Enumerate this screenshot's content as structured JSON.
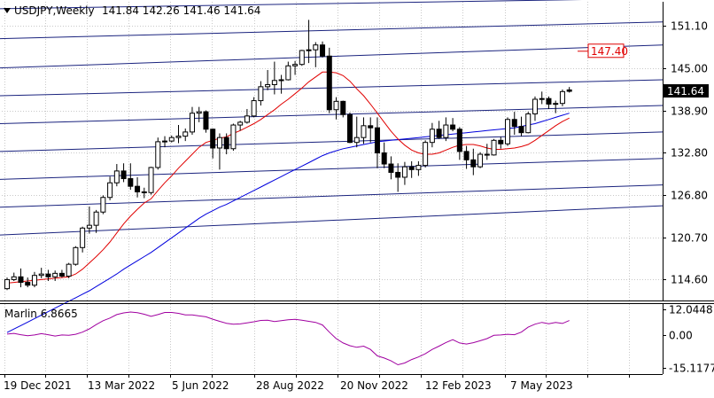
{
  "header": {
    "symbol_label": "USDJPY,Weekly",
    "ohlc_label": "141.84 142.26 141.46 141.64"
  },
  "colors": {
    "bull": "#000000",
    "bear": "#000000",
    "bull_fill": "#ffffff",
    "bear_fill": "#000000",
    "ma_fast": "#e00000",
    "ma_slow": "#0000dd",
    "channel": "#1a237e",
    "oscillator": "#a000a0",
    "target": "#e00000",
    "grid": "#c8c8c8"
  },
  "chart_data": [
    {
      "type": "candlestick",
      "symbol": "USDJPY",
      "timeframe": "Weekly",
      "ylim": [
        111.6,
        154.5
      ],
      "y_ticks": [
        "151.10",
        "145.00",
        "138.90",
        "132.80",
        "126.80",
        "120.70",
        "114.60"
      ],
      "x_ticks": [
        "19 Dec 2021",
        "13 Mar 2022",
        "5 Jun 2022",
        "28 Aug 2022",
        "20 Nov 2022",
        "12 Feb 2023",
        "7 May 2023"
      ],
      "current_price_label": "141.64",
      "target_label": "147.40",
      "target_value": 147.4,
      "ohlc": [
        [
          113.3,
          114.9,
          113.1,
          114.6
        ],
        [
          114.6,
          115.6,
          114.4,
          115.0
        ],
        [
          115.0,
          116.2,
          113.5,
          114.2
        ],
        [
          114.2,
          114.9,
          113.5,
          113.8
        ],
        [
          113.8,
          115.7,
          113.5,
          115.2
        ],
        [
          115.2,
          116.3,
          114.8,
          115.4
        ],
        [
          115.4,
          116.0,
          114.4,
          115.0
        ],
        [
          115.0,
          115.9,
          114.4,
          115.5
        ],
        [
          115.5,
          116.0,
          114.9,
          115.1
        ],
        [
          115.1,
          117.0,
          114.8,
          116.8
        ],
        [
          116.8,
          119.4,
          116.6,
          119.2
        ],
        [
          119.2,
          122.2,
          118.5,
          122.0
        ],
        [
          122.0,
          125.1,
          121.2,
          122.4
        ],
        [
          122.4,
          124.6,
          121.3,
          124.3
        ],
        [
          124.3,
          126.7,
          124.0,
          126.4
        ],
        [
          126.4,
          129.4,
          126.0,
          128.5
        ],
        [
          128.5,
          131.2,
          128.0,
          130.2
        ],
        [
          130.2,
          131.3,
          128.6,
          129.1
        ],
        [
          129.1,
          131.3,
          127.5,
          128.0
        ],
        [
          128.0,
          129.3,
          126.4,
          127.2
        ],
        [
          127.2,
          127.8,
          126.3,
          127.1
        ],
        [
          127.1,
          130.8,
          126.8,
          130.7
        ],
        [
          130.7,
          135.0,
          130.4,
          134.4
        ],
        [
          134.4,
          135.2,
          133.6,
          134.5
        ],
        [
          134.5,
          135.3,
          134.3,
          135.0
        ],
        [
          135.0,
          136.8,
          134.2,
          135.2
        ],
        [
          135.2,
          136.3,
          134.5,
          135.8
        ],
        [
          135.8,
          139.4,
          135.4,
          138.5
        ],
        [
          138.5,
          139.4,
          137.2,
          138.7
        ],
        [
          138.7,
          138.9,
          135.7,
          136.2
        ],
        [
          136.2,
          136.3,
          132.0,
          133.5
        ],
        [
          133.5,
          135.6,
          130.4,
          135.0
        ],
        [
          135.0,
          135.6,
          132.6,
          133.4
        ],
        [
          133.4,
          137.0,
          133.1,
          136.8
        ],
        [
          136.8,
          137.4,
          136.0,
          137.2
        ],
        [
          137.2,
          139.1,
          137.0,
          138.1
        ],
        [
          138.1,
          140.8,
          137.9,
          140.3
        ],
        [
          140.3,
          143.1,
          139.6,
          142.3
        ],
        [
          142.3,
          144.7,
          141.8,
          142.6
        ],
        [
          142.6,
          145.9,
          141.2,
          143.2
        ],
        [
          143.2,
          144.0,
          141.3,
          143.3
        ],
        [
          143.3,
          145.9,
          143.2,
          145.3
        ],
        [
          145.3,
          146.0,
          144.0,
          145.5
        ],
        [
          145.5,
          147.6,
          145.3,
          147.5
        ],
        [
          147.5,
          151.9,
          145.7,
          147.6
        ],
        [
          147.6,
          148.7,
          145.1,
          148.3
        ],
        [
          148.3,
          148.8,
          146.5,
          146.7
        ],
        [
          146.7,
          147.9,
          138.5,
          139.0
        ],
        [
          139.0,
          140.8,
          137.6,
          140.2
        ],
        [
          140.2,
          140.3,
          137.9,
          138.3
        ],
        [
          138.3,
          138.6,
          134.2,
          134.3
        ],
        [
          134.3,
          138.0,
          133.6,
          135.0
        ],
        [
          135.0,
          137.9,
          134.1,
          136.7
        ],
        [
          136.7,
          137.9,
          134.3,
          136.4
        ],
        [
          136.4,
          137.9,
          130.6,
          132.8
        ],
        [
          132.8,
          134.3,
          130.6,
          131.2
        ],
        [
          131.2,
          132.3,
          129.0,
          130.0
        ],
        [
          130.0,
          131.3,
          127.2,
          129.3
        ],
        [
          129.3,
          131.5,
          128.2,
          130.8
        ],
        [
          130.8,
          131.6,
          129.2,
          130.4
        ],
        [
          130.4,
          131.6,
          129.5,
          131.0
        ],
        [
          131.0,
          134.6,
          130.7,
          134.3
        ],
        [
          134.3,
          137.1,
          133.6,
          136.2
        ],
        [
          136.2,
          137.4,
          134.8,
          135.0
        ],
        [
          135.0,
          137.9,
          134.5,
          136.8
        ],
        [
          136.8,
          137.8,
          135.9,
          136.2
        ],
        [
          136.2,
          136.5,
          131.8,
          133.0
        ],
        [
          133.0,
          133.8,
          130.5,
          131.8
        ],
        [
          131.8,
          133.4,
          129.6,
          130.8
        ],
        [
          130.8,
          132.9,
          130.6,
          132.6
        ],
        [
          132.6,
          134.1,
          131.8,
          132.5
        ],
        [
          132.5,
          134.8,
          132.4,
          134.6
        ],
        [
          134.6,
          135.1,
          133.4,
          134.1
        ],
        [
          134.1,
          137.9,
          133.8,
          137.6
        ],
        [
          137.6,
          138.7,
          135.4,
          136.6
        ],
        [
          136.6,
          138.0,
          135.2,
          135.7
        ],
        [
          135.7,
          138.7,
          135.6,
          138.4
        ],
        [
          138.4,
          140.9,
          137.4,
          140.5
        ],
        [
          140.5,
          141.6,
          139.8,
          140.6
        ],
        [
          140.6,
          140.9,
          139.1,
          139.8
        ],
        [
          139.8,
          140.3,
          138.5,
          139.9
        ],
        [
          139.9,
          141.9,
          139.5,
          141.6
        ],
        [
          141.84,
          142.26,
          141.46,
          141.64
        ]
      ],
      "ma_fast": [
        114.1,
        114.2,
        114.3,
        114.4,
        114.5,
        114.6,
        114.7,
        114.8,
        114.9,
        115.0,
        115.4,
        116.1,
        117.0,
        117.9,
        118.9,
        120.0,
        121.3,
        122.6,
        123.7,
        124.7,
        125.6,
        126.2,
        127.4,
        128.5,
        129.5,
        130.6,
        131.6,
        132.6,
        133.6,
        134.3,
        134.6,
        134.9,
        135.1,
        135.6,
        136.0,
        136.5,
        137.0,
        137.6,
        138.3,
        139.0,
        139.8,
        140.5,
        141.3,
        142.1,
        143.0,
        143.7,
        144.4,
        144.4,
        144.3,
        143.9,
        143.1,
        142.0,
        141.0,
        139.8,
        138.5,
        137.2,
        135.9,
        134.8,
        133.9,
        133.2,
        132.8,
        132.6,
        132.6,
        132.8,
        133.2,
        133.6,
        133.9,
        134.0,
        134.0,
        133.8,
        133.5,
        133.3,
        133.3,
        133.4,
        133.5,
        133.7,
        134.0,
        134.6,
        135.3,
        136.0,
        136.7,
        137.3,
        137.8
      ],
      "ma_slow": [
        107.0,
        107.5,
        108.0,
        108.5,
        109.0,
        109.5,
        110.0,
        110.5,
        111.0,
        111.5,
        112.0,
        112.5,
        113.0,
        113.6,
        114.2,
        114.8,
        115.4,
        116.1,
        116.7,
        117.3,
        117.9,
        118.5,
        119.2,
        119.9,
        120.6,
        121.3,
        122.0,
        122.7,
        123.4,
        124.0,
        124.5,
        125.0,
        125.4,
        125.9,
        126.4,
        126.9,
        127.4,
        127.9,
        128.4,
        128.9,
        129.4,
        129.9,
        130.4,
        130.9,
        131.4,
        131.9,
        132.4,
        132.8,
        133.1,
        133.4,
        133.6,
        133.8,
        134.0,
        134.2,
        134.4,
        134.5,
        134.6,
        134.7,
        134.8,
        134.9,
        135.0,
        135.1,
        135.2,
        135.3,
        135.4,
        135.5,
        135.6,
        135.7,
        135.8,
        135.9,
        136.0,
        136.1,
        136.2,
        136.3,
        136.4,
        136.6,
        136.8,
        137.0,
        137.3,
        137.6,
        137.9,
        138.2,
        138.5
      ],
      "channel_lines": [
        {
          "y_start": 153.5,
          "y_end": 155.0
        },
        {
          "y_start": 149.2,
          "y_end": 151.6
        },
        {
          "y_start": 145.0,
          "y_end": 148.3
        },
        {
          "y_start": 141.0,
          "y_end": 143.3
        },
        {
          "y_start": 137.0,
          "y_end": 139.6
        },
        {
          "y_start": 133.0,
          "y_end": 135.8
        },
        {
          "y_start": 129.0,
          "y_end": 132.0
        },
        {
          "y_start": 125.0,
          "y_end": 128.2
        },
        {
          "y_start": 121.0,
          "y_end": 125.2
        }
      ]
    },
    {
      "type": "line",
      "title": "Marlin 6.8665",
      "series_name": "Marlin",
      "ylim": [
        -17.5,
        14.5
      ],
      "y_ticks": [
        "12.0448",
        "0.00",
        "-15.1177"
      ],
      "values": [
        0.6,
        0.9,
        0.3,
        -0.2,
        0.2,
        0.8,
        0.3,
        -0.3,
        0.2,
        0.0,
        0.5,
        1.5,
        3.0,
        5.0,
        6.8,
        8.0,
        9.6,
        10.4,
        10.8,
        10.5,
        9.8,
        8.8,
        9.6,
        10.6,
        10.6,
        10.2,
        9.5,
        9.5,
        9.0,
        8.6,
        7.5,
        6.5,
        5.6,
        5.2,
        5.3,
        5.8,
        6.3,
        6.9,
        7.0,
        6.4,
        6.8,
        7.2,
        7.4,
        7.0,
        6.5,
        6.0,
        4.8,
        1.5,
        -1.5,
        -3.5,
        -4.8,
        -5.5,
        -5.0,
        -6.5,
        -9.5,
        -10.5,
        -11.8,
        -13.6,
        -12.8,
        -11.2,
        -10.0,
        -8.5,
        -6.5,
        -5.0,
        -3.3,
        -2.0,
        -3.5,
        -4.0,
        -3.4,
        -2.5,
        -1.5,
        0.0,
        0.2,
        0.5,
        0.3,
        1.5,
        3.8,
        5.2,
        6.0,
        5.4,
        6.0,
        5.5,
        6.87
      ]
    }
  ]
}
